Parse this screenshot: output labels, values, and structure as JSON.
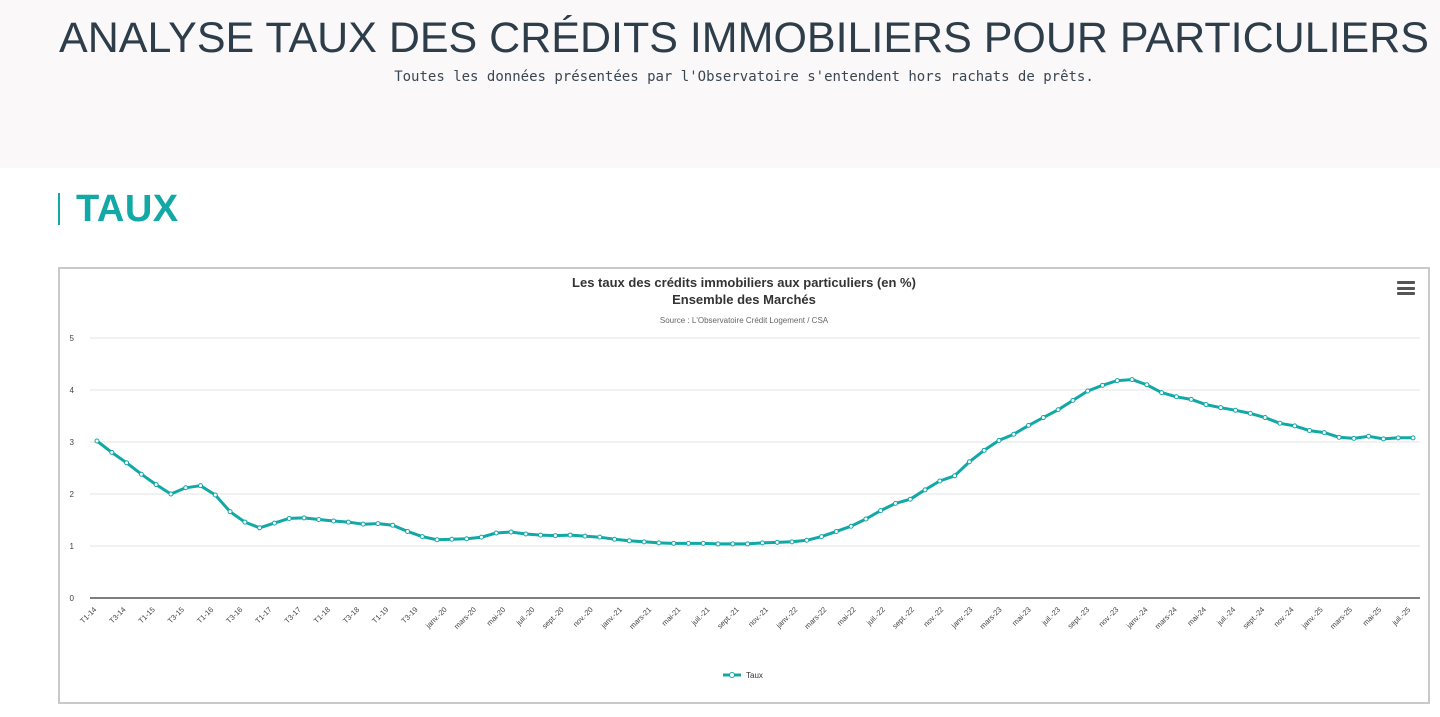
{
  "page": {
    "title": "ANALYSE TAUX DES CRÉDITS IMMOBILIERS POUR PARTICULIERS",
    "subtitle": "Toutes les données présentées par l'Observatoire s'entendent hors rachats de prêts.",
    "section_title": "TAUX"
  },
  "colors": {
    "accent": "#11a8a6",
    "title_text": "#2d3d4a"
  },
  "chart_menu_icon": "hamburger-menu-icon",
  "chart_data": {
    "type": "line",
    "title": "Les taux des crédits immobiliers aux particuliers (en %)",
    "subtitle": "Ensemble des Marchés",
    "source": "Source : L'Observatoire Crédit Logement / CSA",
    "xlabel": "",
    "ylabel": "",
    "ylim": [
      0,
      5
    ],
    "yticks": [
      "0",
      "1",
      "2",
      "3",
      "4",
      "5"
    ],
    "grid": true,
    "legend_position": "bottom",
    "x_tick_labels": [
      "T1-14",
      "T3-14",
      "T1-15",
      "T3-15",
      "T1-16",
      "T3-16",
      "T1-17",
      "T3-17",
      "T1-18",
      "T3-18",
      "T1-19",
      "T3-19",
      "janv.-20",
      "mars-20",
      "mai-20",
      "juil.-20",
      "sept.-20",
      "nov.-20",
      "janv.-21",
      "mars-21",
      "mai-21",
      "juil.-21",
      "sept.-21",
      "nov.-21",
      "janv.-22",
      "mars-22",
      "mai-22",
      "juil.-22",
      "sept.-22",
      "nov.-22",
      "janv.-23",
      "mars-23",
      "mai-23",
      "juil.-23",
      "sept.-23",
      "nov.-23",
      "janv.-24",
      "mars-24",
      "mai-24",
      "juil.-24",
      "sept.-24",
      "nov.-24",
      "janv.-25",
      "mars-25",
      "mai-25",
      "juil.-25"
    ],
    "series": [
      {
        "name": "Taux",
        "color": "#11a8a6",
        "values": [
          3.02,
          2.8,
          2.6,
          2.38,
          2.18,
          2.0,
          2.12,
          2.16,
          1.98,
          1.66,
          1.46,
          1.35,
          1.44,
          1.53,
          1.54,
          1.51,
          1.48,
          1.46,
          1.42,
          1.43,
          1.4,
          1.28,
          1.18,
          1.12,
          1.13,
          1.14,
          1.17,
          1.25,
          1.27,
          1.23,
          1.21,
          1.2,
          1.21,
          1.19,
          1.17,
          1.13,
          1.1,
          1.08,
          1.06,
          1.05,
          1.05,
          1.05,
          1.04,
          1.04,
          1.04,
          1.06,
          1.07,
          1.08,
          1.11,
          1.18,
          1.28,
          1.38,
          1.52,
          1.68,
          1.82,
          1.9,
          2.08,
          2.25,
          2.35,
          2.62,
          2.84,
          3.03,
          3.15,
          3.32,
          3.47,
          3.62,
          3.8,
          3.98,
          4.09,
          4.18,
          4.2,
          4.1,
          3.95,
          3.87,
          3.82,
          3.72,
          3.66,
          3.61,
          3.55,
          3.47,
          3.36,
          3.31,
          3.22,
          3.18,
          3.09,
          3.07,
          3.11,
          3.06,
          3.08,
          3.08
        ]
      }
    ]
  }
}
